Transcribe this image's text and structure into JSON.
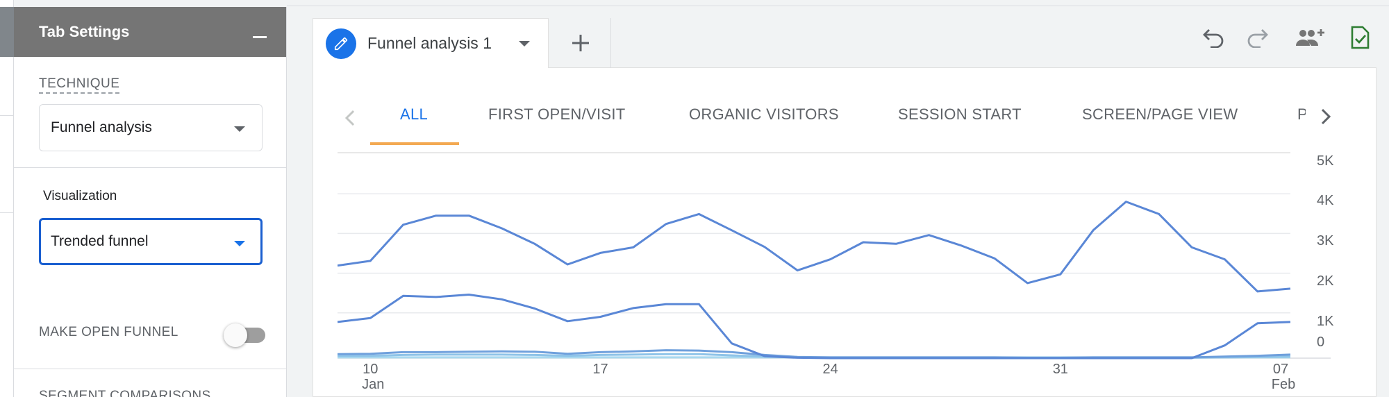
{
  "left_panel": {
    "title": "Tab Settings",
    "technique_label": "TECHNIQUE",
    "technique_value": "Funnel analysis",
    "visualization_label": "Visualization",
    "visualization_value": "Trended funnel",
    "open_funnel_label": "MAKE OPEN FUNNEL",
    "open_funnel_enabled": false,
    "segment_label": "SEGMENT COMPARISONS"
  },
  "tab": {
    "label": "Funnel analysis 1",
    "accent": "#1a73e8"
  },
  "toolbar": {
    "icons": [
      "undo-icon",
      "redo-icon",
      "share-users-icon",
      "saved-check-icon"
    ]
  },
  "step_tabs": [
    "ALL",
    "FIRST OPEN/VISIT",
    "ORGANIC VISITORS",
    "SESSION START",
    "SCREEN/PAGE VIEW",
    "P"
  ],
  "active_step_tab": "ALL",
  "chart_data": {
    "type": "line",
    "x_tick_labels": [
      {
        "day": "10",
        "month": "Jan"
      },
      {
        "day": "17",
        "month": ""
      },
      {
        "day": "24",
        "month": ""
      },
      {
        "day": "31",
        "month": ""
      },
      {
        "day": "07",
        "month": "Feb"
      }
    ],
    "y_tick_labels": [
      "5K",
      "4K",
      "3K",
      "2K",
      "1K",
      "0"
    ],
    "ylim": [
      0,
      5000
    ],
    "x": [
      "Jan 9",
      "Jan 10",
      "Jan 11",
      "Jan 12",
      "Jan 13",
      "Jan 14",
      "Jan 15",
      "Jan 16",
      "Jan 17",
      "Jan 18",
      "Jan 19",
      "Jan 20",
      "Jan 21",
      "Jan 22",
      "Jan 23",
      "Jan 24",
      "Jan 25",
      "Jan 26",
      "Jan 27",
      "Jan 28",
      "Jan 29",
      "Jan 30",
      "Jan 31",
      "Feb 1",
      "Feb 2",
      "Feb 3",
      "Feb 4",
      "Feb 5",
      "Feb 6",
      "Feb 7"
    ],
    "grid": true,
    "series": [
      {
        "color": "#5a87d6",
        "values": [
          2330,
          2450,
          3360,
          3590,
          3590,
          3270,
          2880,
          2360,
          2650,
          2790,
          3380,
          3630,
          3220,
          2800,
          2210,
          2490,
          2920,
          2880,
          3100,
          2830,
          2510,
          1890,
          2110,
          3220,
          3940,
          3630,
          2790,
          2490,
          1680,
          1750
        ]
      },
      {
        "color": "#5a87d6",
        "values": [
          910,
          1010,
          1570,
          1540,
          1600,
          1480,
          1250,
          930,
          1040,
          1260,
          1360,
          1360,
          370,
          50,
          10,
          0,
          0,
          0,
          0,
          0,
          0,
          0,
          0,
          0,
          0,
          0,
          0,
          320,
          880,
          910
        ]
      },
      {
        "color": "#6fa0dc",
        "values": [
          100,
          110,
          150,
          150,
          160,
          170,
          160,
          110,
          150,
          170,
          200,
          190,
          150,
          80,
          30,
          20,
          20,
          20,
          20,
          20,
          20,
          10,
          10,
          20,
          20,
          20,
          20,
          40,
          60,
          90
        ]
      },
      {
        "color": "#8ec3e8",
        "values": [
          60,
          60,
          80,
          90,
          90,
          90,
          80,
          60,
          80,
          90,
          100,
          100,
          70,
          40,
          20,
          10,
          10,
          10,
          10,
          10,
          10,
          5,
          5,
          10,
          10,
          10,
          10,
          20,
          30,
          40
        ]
      },
      {
        "color": "#a8d8ef",
        "values": [
          20,
          20,
          20,
          20,
          20,
          20,
          20,
          20,
          20,
          20,
          20,
          20,
          20,
          20,
          20,
          20,
          20,
          20,
          20,
          20,
          20,
          20,
          20,
          20,
          20,
          20,
          20,
          20,
          20,
          20
        ]
      }
    ]
  }
}
